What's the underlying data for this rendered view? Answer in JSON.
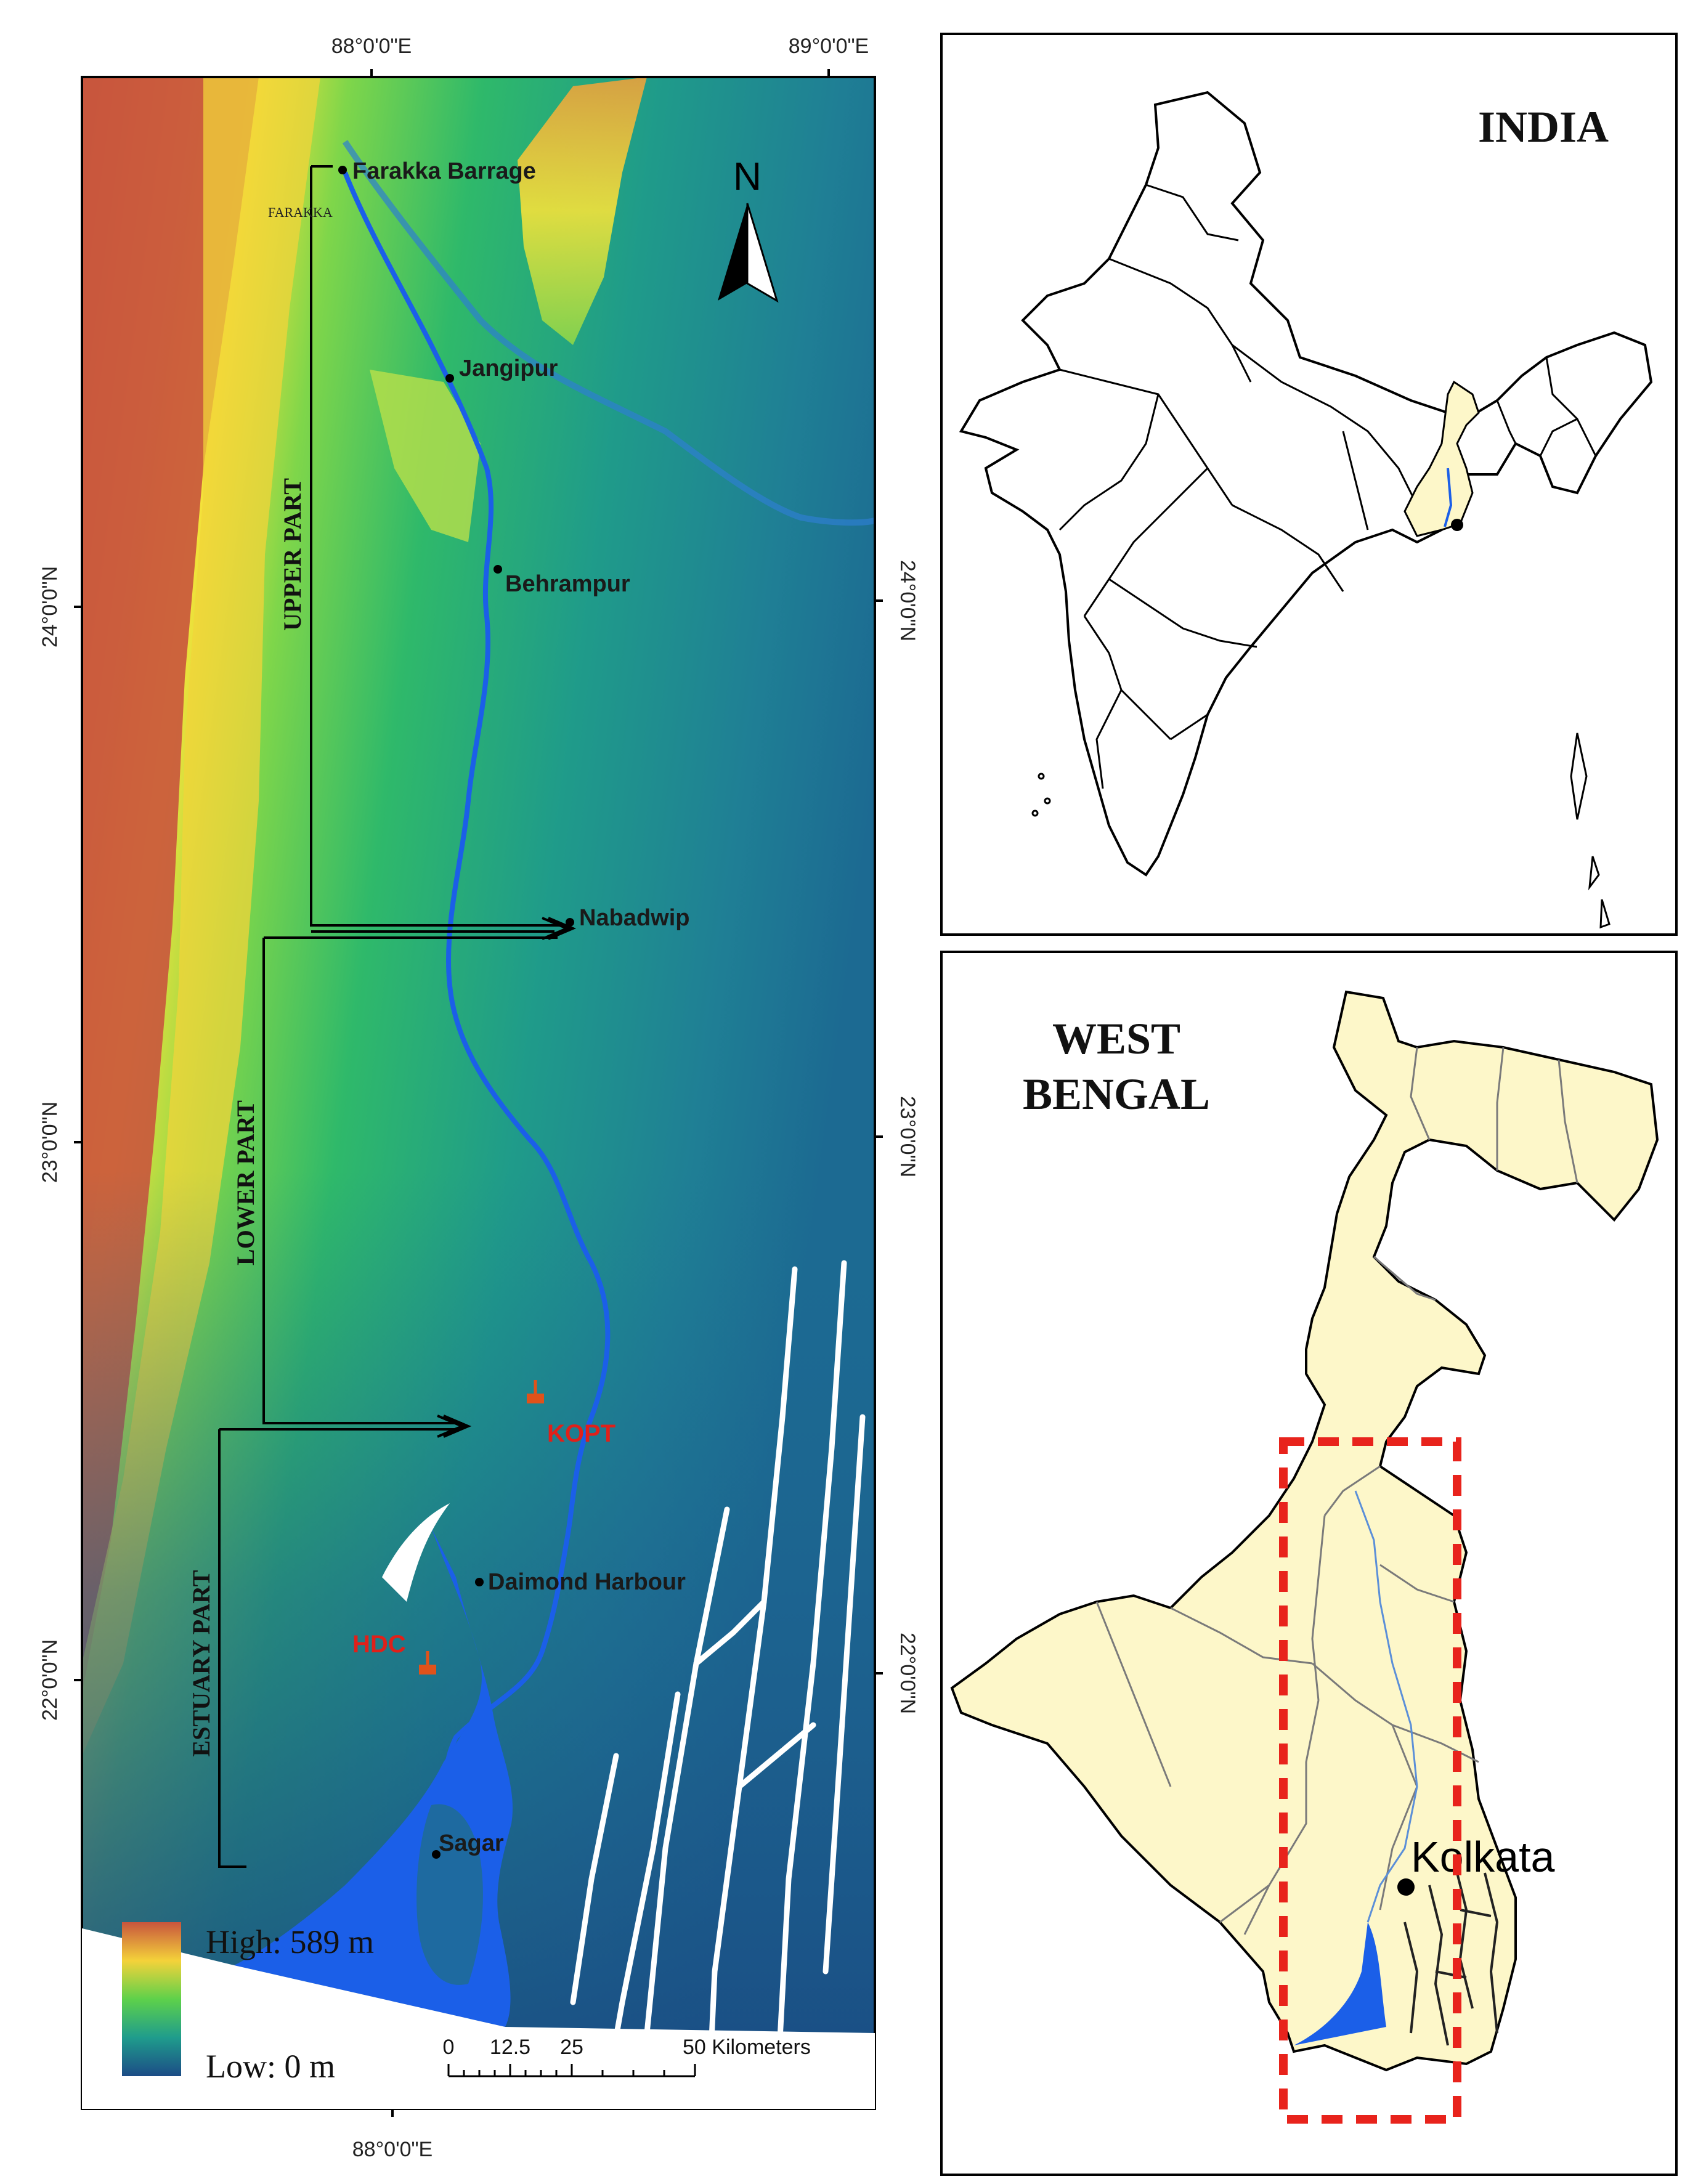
{
  "main_map": {
    "top_ticks": [
      "88°0'0\"E",
      "89°0'0\"E"
    ],
    "bottom_ticks": [
      "88°0'0\"E"
    ],
    "left_ticks": [
      "24°0'0\"N",
      "23°0'0\"N",
      "22°0'0\"N"
    ],
    "right_ticks": [
      "24°0'0\"N",
      "23°0'0\"N",
      "22°0'0\"N"
    ],
    "north_label": "N",
    "places": {
      "farakka_barrage": "Farakka Barrage",
      "farakka_small": "FARAKKA",
      "jangipur": "Jangipur",
      "behrampur": "Behrampur",
      "nabadwip": "Nabadwip",
      "kopt": "KOPT",
      "daimond_harbour": "Daimond Harbour",
      "hdc": "HDC",
      "sagar": "Sagar"
    },
    "parts": {
      "upper": "UPPER PART",
      "lower": "LOWER PART",
      "estuary": "ESTUARY PART"
    },
    "legend": {
      "high": "High: 589 m",
      "low": "Low: 0 m",
      "high_value_m": 589,
      "low_value_m": 0
    },
    "scale_bar": {
      "labels": [
        "0",
        "12.5",
        "25",
        "50 Kilometers"
      ],
      "values_km": [
        0,
        12.5,
        25,
        50
      ]
    },
    "colors": {
      "high": "#c8553d",
      "mid_high": "#f6e23a",
      "mid": "#55c84a",
      "low": "#1c4c86",
      "river": "#1b5fe8",
      "marker_red": "#e0201a"
    }
  },
  "india_map": {
    "title": "INDIA",
    "highlight_color": "#fdf7c9"
  },
  "west_bengal_map": {
    "title_line1": "WEST",
    "title_line2": "BENGAL",
    "city": "Kolkata",
    "fill_color": "#fdf7c9",
    "box_color": "#e8231c"
  }
}
